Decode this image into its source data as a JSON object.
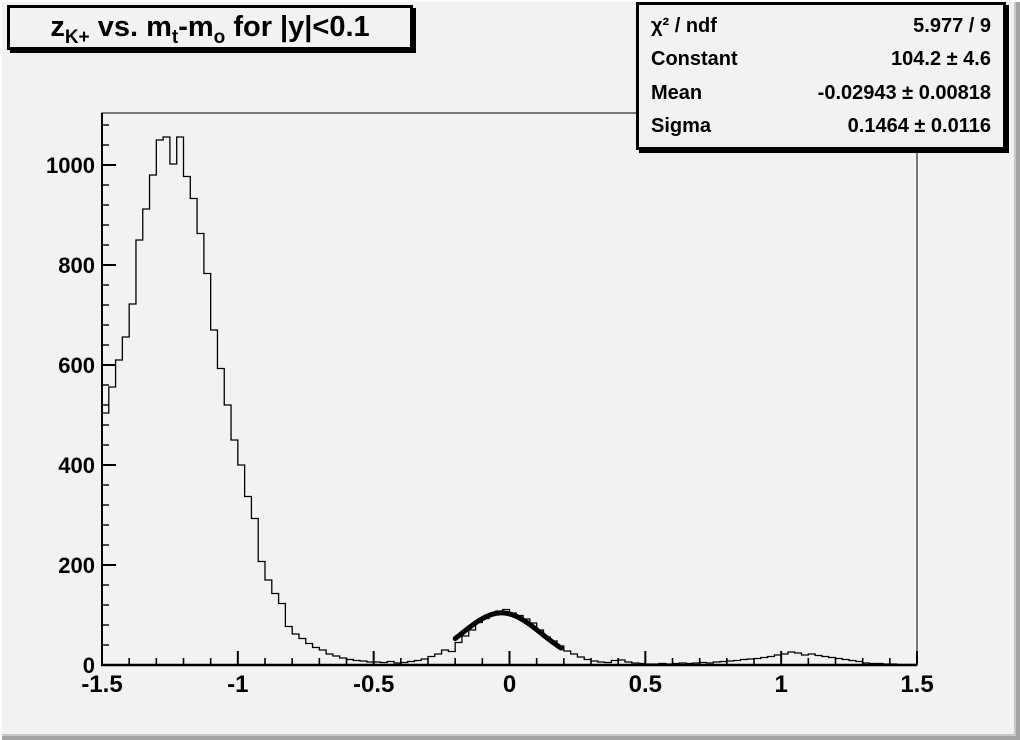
{
  "canvas": {
    "background": "#f2f2f2",
    "bevel_light": "#fdfdfd",
    "bevel_dark": "#a3a3a3",
    "ink": "#000000"
  },
  "title": {
    "p1": "z",
    "s1": "K+",
    "p2": " vs. m",
    "s2": "t",
    "p3": "-m",
    "s3": "o",
    "p4": " for |y|<0.1"
  },
  "stats": {
    "rows": [
      {
        "label": "χ² / ndf",
        "value": "5.977 / 9"
      },
      {
        "label": "Constant",
        "value": "104.2 ± 4.6"
      },
      {
        "label": "Mean",
        "value": "-0.02943 ± 0.00818"
      },
      {
        "label": "Sigma",
        "value": "0.1464 ± 0.0116"
      }
    ]
  },
  "chart_data": {
    "type": "bar",
    "subtype": "step-histogram",
    "title": "z_{K+} vs. m_{t}-m_{o} for |y|<0.1",
    "xlabel": "",
    "ylabel": "",
    "xlim": [
      -1.5,
      1.5
    ],
    "ylim": [
      0,
      1104
    ],
    "grid": false,
    "legend_position": "none",
    "bin_start": -1.5,
    "bin_width": 0.025,
    "values": [
      504,
      556,
      610,
      656,
      722,
      850,
      912,
      980,
      1050,
      1056,
      1002,
      1056,
      977,
      933,
      863,
      783,
      670,
      593,
      520,
      450,
      400,
      337,
      293,
      207,
      170,
      143,
      123,
      77,
      62,
      53,
      43,
      35,
      30,
      22,
      18,
      14,
      11,
      9,
      8,
      6,
      6,
      5,
      7,
      4,
      5,
      7,
      9,
      12,
      17,
      22,
      30,
      27,
      45,
      58,
      70,
      85,
      93,
      100,
      108,
      111,
      104,
      99,
      92,
      84,
      70,
      56,
      48,
      38,
      28,
      22,
      16,
      11,
      8,
      6,
      5,
      9,
      10,
      6,
      4,
      3,
      2,
      2,
      3,
      2,
      3,
      4,
      3,
      4,
      5,
      4,
      6,
      7,
      8,
      9,
      11,
      12,
      13,
      15,
      17,
      20,
      22,
      26,
      24,
      20,
      22,
      19,
      17,
      15,
      13,
      11,
      9,
      7,
      4,
      3,
      3,
      2,
      2,
      1,
      1,
      1
    ],
    "x_major_ticks": [
      -1.5,
      -1,
      -0.5,
      0,
      0.5,
      1,
      1.5
    ],
    "x_tick_labels": [
      "-1.5",
      "-1",
      "-0.5",
      "0",
      "0.5",
      "1",
      "1.5"
    ],
    "x_minor_step": 0.1,
    "y_major_ticks": [
      0,
      200,
      400,
      600,
      800,
      1000
    ],
    "y_tick_labels": [
      "0",
      "200",
      "400",
      "600",
      "800",
      "1000"
    ],
    "y_minor_step": 40,
    "line_color": "#000000",
    "fit": {
      "type": "gaussian",
      "constant": 104.2,
      "mean": -0.0294,
      "sigma": 0.1464,
      "draw_range": [
        -0.2,
        0.19
      ],
      "color": "#000000",
      "width": 5
    }
  }
}
